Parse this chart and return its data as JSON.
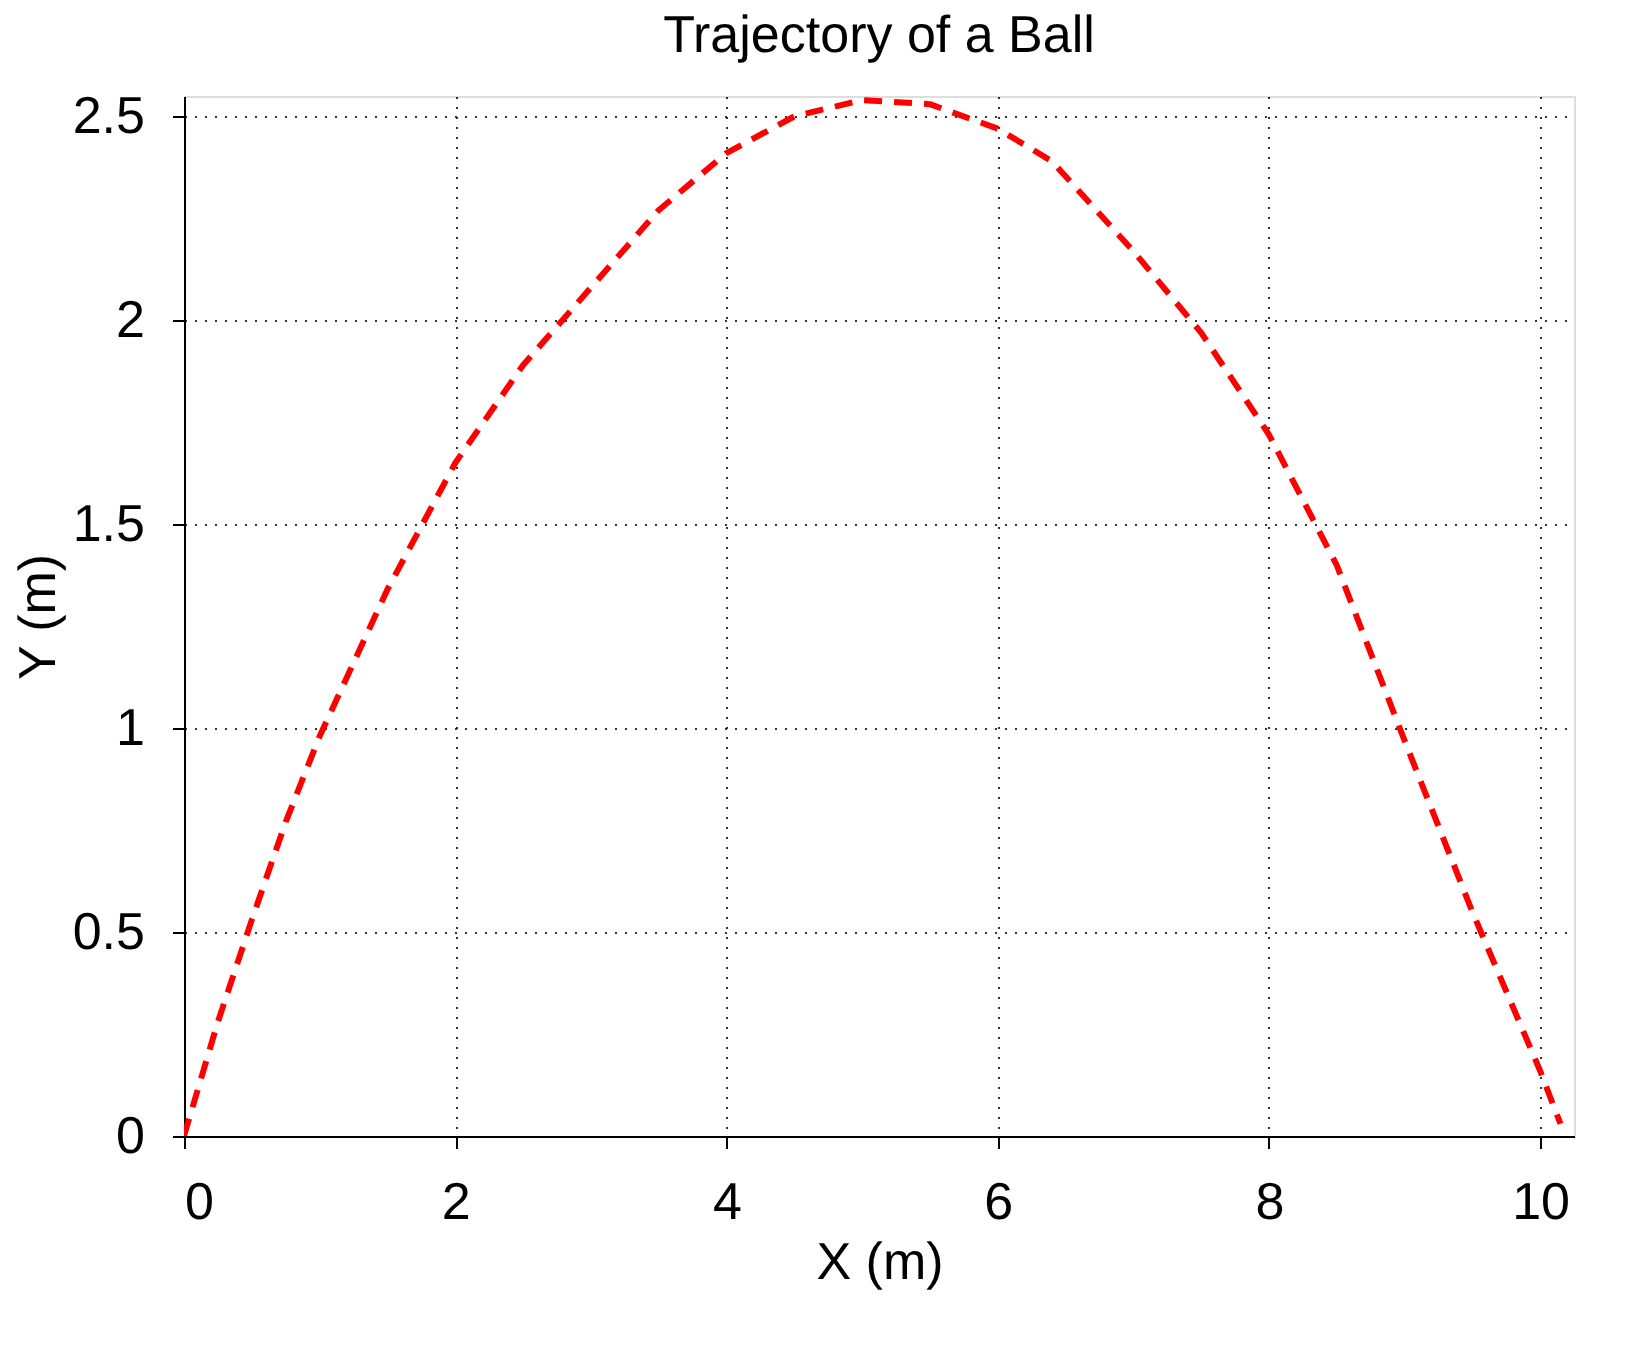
{
  "chart_data": {
    "type": "line",
    "title": "Trajectory of a Ball",
    "xlabel": "X (m)",
    "ylabel": "Y (m)",
    "x": [
      0,
      0.25,
      0.5,
      0.75,
      1,
      1.5,
      2,
      2.5,
      3,
      3.5,
      4,
      4.5,
      5,
      5.5,
      6,
      6.4,
      7,
      7.5,
      8,
      8.5,
      9,
      9.5,
      10,
      10.15
    ],
    "series": [
      {
        "color": "#ff0000",
        "values": [
          0,
          0.28,
          0.53,
          0.77,
          0.98,
          1.34,
          1.65,
          1.89,
          2.08,
          2.27,
          2.41,
          2.5,
          2.54,
          2.53,
          2.47,
          2.39,
          2.17,
          1.97,
          1.72,
          1.4,
          0.97,
          0.55,
          0.16,
          0.03
        ]
      }
    ],
    "xlim": [
      0,
      10.25
    ],
    "ylim": [
      0,
      2.55
    ],
    "xticks": [
      0,
      2,
      4,
      6,
      8,
      10
    ],
    "yticks": [
      0,
      0.5,
      1,
      1.5,
      2,
      2.5
    ],
    "grid": true,
    "line_style": "dashed",
    "marker": "none"
  }
}
